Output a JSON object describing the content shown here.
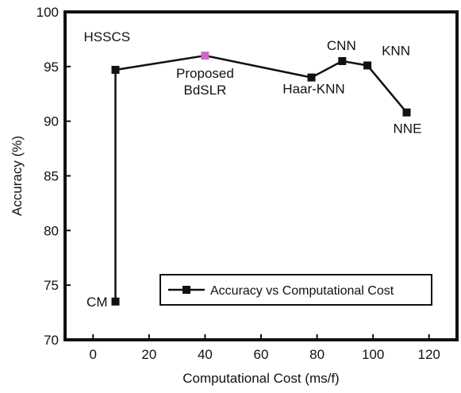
{
  "chart_data": {
    "type": "line",
    "xlabel": "Computational Cost (ms/f)",
    "ylabel": "Accuracy (%)",
    "xlim": [
      -10,
      130
    ],
    "ylim": [
      70,
      100
    ],
    "xticks": [
      0,
      20,
      40,
      60,
      80,
      100,
      120
    ],
    "yticks": [
      70,
      75,
      80,
      85,
      90,
      95,
      100
    ],
    "grid": false,
    "legend_position": "bottom-right",
    "series": [
      {
        "name": "Accuracy vs Computational Cost",
        "color": "#111111",
        "marker": "square",
        "points": [
          {
            "label": "CM",
            "x": 8,
            "y": 73.5
          },
          {
            "label": "HSSCS",
            "x": 8,
            "y": 94.7
          },
          {
            "label": "Proposed BdSLR",
            "x": 40,
            "y": 96.0,
            "color": "#cc66cc"
          },
          {
            "label": "Haar-KNN",
            "x": 78,
            "y": 94.0
          },
          {
            "label": "CNN",
            "x": 89,
            "y": 95.5
          },
          {
            "label": "KNN",
            "x": 98,
            "y": 95.1
          },
          {
            "label": "NNE",
            "x": 112,
            "y": 90.8
          }
        ]
      }
    ]
  }
}
